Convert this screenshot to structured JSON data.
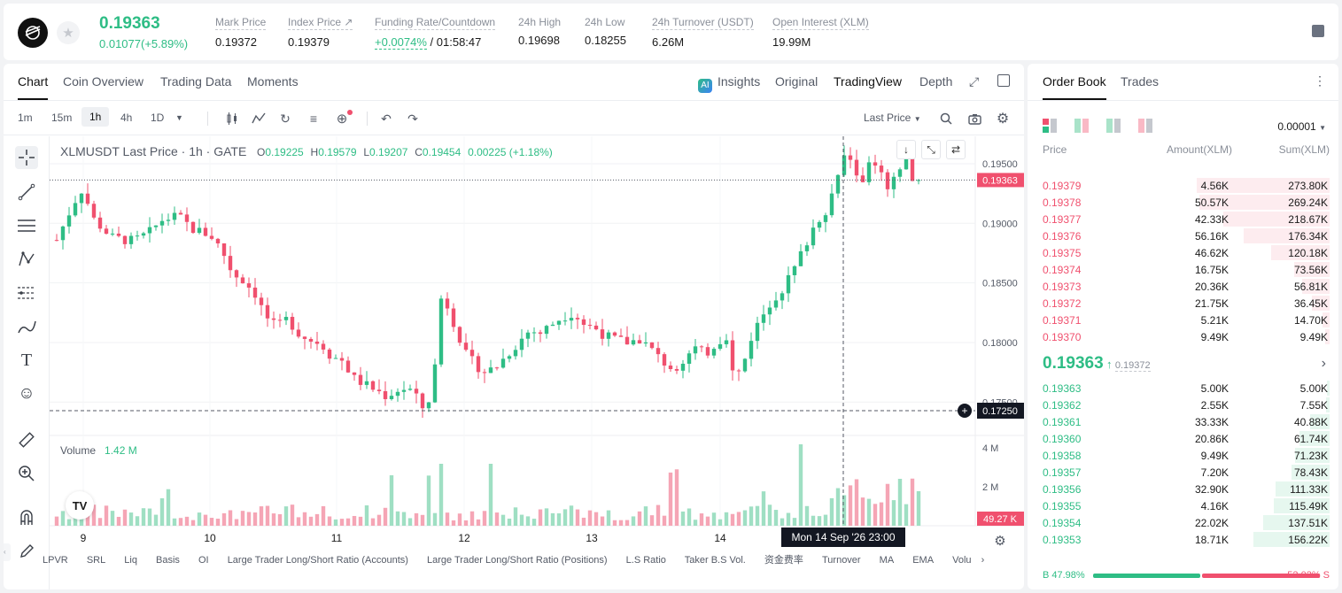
{
  "header": {
    "last_price": "0.19363",
    "change": "0.01077(+5.89%)",
    "stats": [
      {
        "label": "Mark Price",
        "value": "0.19372"
      },
      {
        "label": "Index Price ↗",
        "value": "0.19379"
      },
      {
        "label": "Funding Rate/Countdown",
        "value_rate": "+0.0074%",
        "value_countdown": "/ 01:58:47"
      },
      {
        "label": "24h High",
        "value": "0.19698"
      },
      {
        "label": "24h Low",
        "value": "0.18255"
      },
      {
        "label": "24h Turnover (USDT)",
        "value": "6.26M"
      },
      {
        "label": "Open Interest (XLM)",
        "value": "19.99M"
      }
    ]
  },
  "chart_tabs": [
    "Chart",
    "Coin Overview",
    "Trading Data",
    "Moments"
  ],
  "view_tabs": [
    "Insights",
    "Original",
    "TradingView",
    "Depth"
  ],
  "timeframes": [
    "1m",
    "15m",
    "1h",
    "4h",
    "1D"
  ],
  "price_type": "Last Price",
  "legend": {
    "symbol": "XLMUSDT Last Price · 1h · GATE",
    "o_label": "O",
    "o": "0.19225",
    "h_label": "H",
    "h": "0.19579",
    "l_label": "L",
    "l": "0.19207",
    "c_label": "C",
    "c": "0.19454",
    "chg": "0.00225 (+1.18%)"
  },
  "volume_legend": {
    "label": "Volume",
    "value": "1.42 M"
  },
  "bottom_indicators": [
    "LPVR",
    "SRL",
    "Liq",
    "Basis",
    "OI",
    "Large Trader Long/Short Ratio (Accounts)",
    "Large Trader Long/Short Ratio (Positions)",
    "L.S Ratio",
    "Taker B.S Vol.",
    "资金费率",
    "Turnover",
    "MA",
    "EMA",
    "Volu"
  ],
  "chart_data": {
    "type": "candlestick",
    "x_ticks": [
      "9",
      "10",
      "11",
      "12",
      "13",
      "14"
    ],
    "y_ticks": [
      "0.19500",
      "0.19000",
      "0.18500",
      "0.18000",
      "0.17500"
    ],
    "ylim": [
      0.1722,
      0.1973
    ],
    "last_price_label": "0.19363",
    "crosshair_price_label": "0.17250",
    "crosshair_time_label": "Mon 14 Sep '26   23:00",
    "volume_ticks": [
      "4 M",
      "2 M"
    ],
    "volume_last_label": "49.27 K",
    "colors": {
      "up": "#2ebd85",
      "down": "#f0506e"
    }
  },
  "orderbook": {
    "tabs": [
      "Order Book",
      "Trades"
    ],
    "precision": "0.00001",
    "columns": [
      "Price",
      "Amount(XLM)",
      "Sum(XLM)"
    ],
    "asks": [
      {
        "price": "0.19379",
        "amount": "4.56K",
        "sum": "273.80K"
      },
      {
        "price": "0.19378",
        "amount": "50.57K",
        "sum": "269.24K"
      },
      {
        "price": "0.19377",
        "amount": "42.33K",
        "sum": "218.67K"
      },
      {
        "price": "0.19376",
        "amount": "56.16K",
        "sum": "176.34K"
      },
      {
        "price": "0.19375",
        "amount": "46.62K",
        "sum": "120.18K"
      },
      {
        "price": "0.19374",
        "amount": "16.75K",
        "sum": "73.56K"
      },
      {
        "price": "0.19373",
        "amount": "20.36K",
        "sum": "56.81K"
      },
      {
        "price": "0.19372",
        "amount": "21.75K",
        "sum": "36.45K"
      },
      {
        "price": "0.19371",
        "amount": "5.21K",
        "sum": "14.70K"
      },
      {
        "price": "0.19370",
        "amount": "9.49K",
        "sum": "9.49K"
      }
    ],
    "mid_price": "0.19363",
    "mid_mark": "0.19372",
    "bids": [
      {
        "price": "0.19363",
        "amount": "5.00K",
        "sum": "5.00K"
      },
      {
        "price": "0.19362",
        "amount": "2.55K",
        "sum": "7.55K"
      },
      {
        "price": "0.19361",
        "amount": "33.33K",
        "sum": "40.88K"
      },
      {
        "price": "0.19360",
        "amount": "20.86K",
        "sum": "61.74K"
      },
      {
        "price": "0.19358",
        "amount": "9.49K",
        "sum": "71.23K"
      },
      {
        "price": "0.19357",
        "amount": "7.20K",
        "sum": "78.43K"
      },
      {
        "price": "0.19356",
        "amount": "32.90K",
        "sum": "111.33K"
      },
      {
        "price": "0.19355",
        "amount": "4.16K",
        "sum": "115.49K"
      },
      {
        "price": "0.19354",
        "amount": "22.02K",
        "sum": "137.51K"
      },
      {
        "price": "0.19353",
        "amount": "18.71K",
        "sum": "156.22K"
      }
    ],
    "buy_ratio": "B 47.98%",
    "sell_ratio": "52.02% S",
    "buy_fraction": 0.4798
  }
}
